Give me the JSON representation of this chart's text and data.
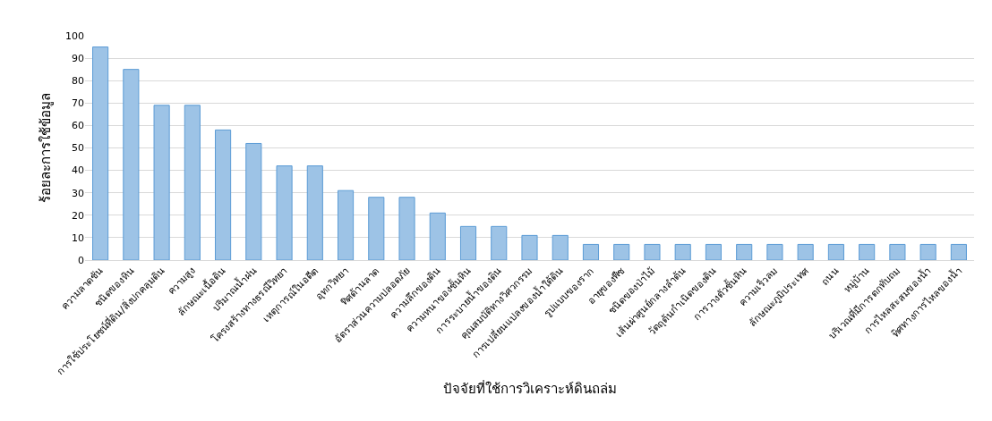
{
  "chart_data": {
    "type": "bar",
    "categories": [
      "ความลาดชัน",
      "ชนิดของหิน",
      "การใช้ประโยชน์ที่ดิน/สิ่งปกคลุมดิน",
      "ความสูง",
      "ลักษณะเนื้อดิน",
      "ปริมาณน้ำฝน",
      "โครงสร้างทางธรณีวิทยา",
      "เหตุการณ์ในอดีต",
      "อุทกวิทยา",
      "ทิศด้านลาด",
      "อัตราส่วนความปลอดภัย",
      "ความลึกของดิน",
      "ความหนาของชั้นหิน",
      "การระบายน้ำของดิน",
      "คุณสมบัติทางวิศวกรรม",
      "การเปลี่ยนแปลงของน้ำใต้ดิน",
      "รูปแบบของราก",
      "อายุของพืช",
      "ชนิดของป่าไม้",
      "เส้นผ่าศูนย์กลางลำต้น",
      "วัตถุต้นกำเนิดของดิน",
      "การวางตัวชั้นหิน",
      "ความเร็วลม",
      "ลักษณะภูมิประเทศ",
      "ถนน",
      "หมู่บ้าน",
      "บริเวณที่มีการตกทับถม",
      "การไหลสะสมของน้ำ",
      "ทิศทางการไหลของน้ำ"
    ],
    "values": [
      95,
      85,
      69,
      69,
      58,
      52,
      42,
      42,
      31,
      28,
      28,
      21,
      15,
      15,
      11,
      11,
      7,
      7,
      7,
      7,
      7,
      7,
      7,
      7,
      7,
      7,
      7,
      7,
      7
    ],
    "color": "#9dc3e6",
    "xlabel": "ปัจจัยที่ใช้การวิเคราะห์ดินถล่ม",
    "ylabel": "ร้อยละการใช้ข้อมูล",
    "ylim": [
      0,
      100
    ],
    "yticks": [
      0,
      10,
      20,
      30,
      40,
      50,
      60,
      70,
      80,
      90,
      100
    ],
    "grid": "y",
    "legend": false
  }
}
